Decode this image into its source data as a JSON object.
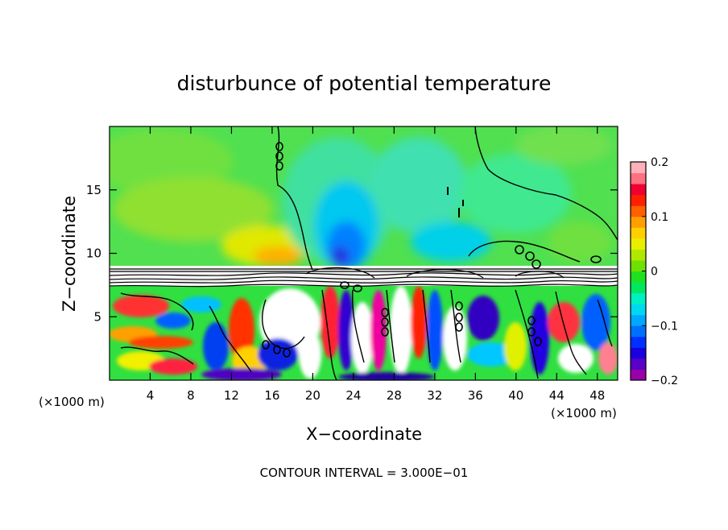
{
  "chart_data": {
    "type": "heatmap",
    "title": "disturbunce of potential temperature",
    "xlabel": "X−coordinate",
    "ylabel": "Z−coordinate",
    "x_unit_left": "(×1000 m)",
    "x_unit_right": "(×1000 m)",
    "xlim": [
      0,
      50
    ],
    "ylim": [
      0,
      20
    ],
    "x_ticks": [
      4,
      8,
      12,
      16,
      20,
      24,
      28,
      32,
      36,
      40,
      44,
      48
    ],
    "y_ticks": [
      5,
      10,
      15
    ],
    "colorbar": {
      "min": -0.2,
      "max": 0.2,
      "tick_values": [
        0.2,
        0.1,
        0,
        -0.1,
        -0.2
      ],
      "tick_labels": [
        "0.2",
        "0.1",
        "0",
        "−0.1",
        "−0.2"
      ],
      "colors": [
        "#9a00a8",
        "#5a00c8",
        "#1a00e0",
        "#0030ff",
        "#0070ff",
        "#00a8ff",
        "#00d8f0",
        "#00f0c0",
        "#00e860",
        "#20e020",
        "#70e000",
        "#b0e800",
        "#e8f000",
        "#ffd000",
        "#ffa000",
        "#ff6000",
        "#ff2000",
        "#f00030",
        "#ff7080",
        "#ffb0b8"
      ]
    },
    "footer": "CONTOUR INTERVAL = 3.000E−01"
  }
}
